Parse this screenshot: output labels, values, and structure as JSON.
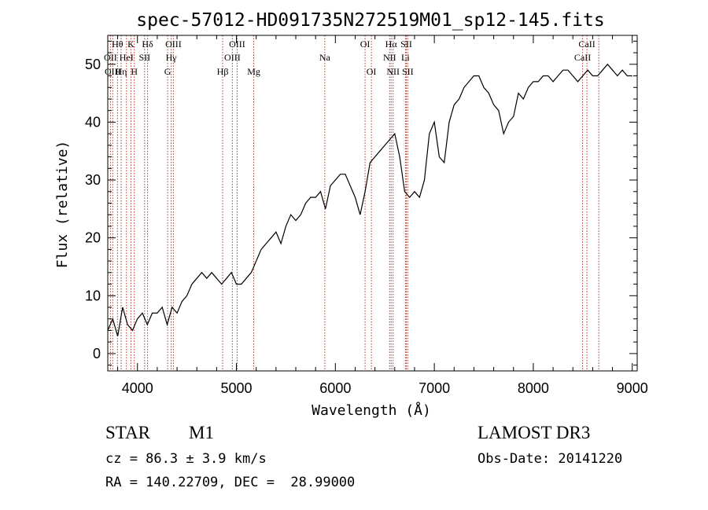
{
  "chart_data": {
    "type": "line",
    "title": "spec-57012-HD091735N272519M01_sp12-145.fits",
    "xlabel": "Wavelength (Å)",
    "ylabel": "Flux (relative)",
    "xlim": [
      3700,
      9050
    ],
    "ylim": [
      -3,
      55
    ],
    "xticks": [
      4000,
      5000,
      6000,
      7000,
      8000,
      9000
    ],
    "xtick_labels": [
      "4000",
      "5000",
      "6000",
      "7000",
      "8000",
      "9000"
    ],
    "yticks": [
      0,
      10,
      20,
      30,
      40,
      50
    ],
    "ytick_labels": [
      "0",
      "10",
      "20",
      "30",
      "40",
      "50"
    ],
    "series": [
      {
        "name": "flux",
        "color": "#000000",
        "x": [
          3700,
          3750,
          3800,
          3850,
          3900,
          3950,
          4000,
          4050,
          4100,
          4150,
          4200,
          4250,
          4300,
          4350,
          4400,
          4450,
          4500,
          4550,
          4600,
          4650,
          4700,
          4750,
          4800,
          4850,
          4900,
          4950,
          5000,
          5050,
          5100,
          5150,
          5200,
          5250,
          5300,
          5350,
          5400,
          5450,
          5500,
          5550,
          5600,
          5650,
          5700,
          5750,
          5800,
          5850,
          5900,
          5950,
          6000,
          6050,
          6100,
          6150,
          6200,
          6250,
          6300,
          6350,
          6400,
          6450,
          6500,
          6550,
          6600,
          6650,
          6700,
          6750,
          6800,
          6850,
          6900,
          6950,
          7000,
          7050,
          7100,
          7150,
          7200,
          7250,
          7300,
          7350,
          7400,
          7450,
          7500,
          7550,
          7600,
          7650,
          7700,
          7750,
          7800,
          7850,
          7900,
          7950,
          8000,
          8050,
          8100,
          8150,
          8200,
          8250,
          8300,
          8350,
          8400,
          8450,
          8500,
          8550,
          8600,
          8650,
          8700,
          8750,
          8800,
          8850,
          8900,
          8950,
          9000
        ],
        "y": [
          4,
          6,
          3,
          8,
          5,
          4,
          6,
          7,
          5,
          7,
          7,
          8,
          5,
          8,
          7,
          9,
          10,
          12,
          13,
          14,
          13,
          14,
          13,
          12,
          13,
          14,
          12,
          12,
          13,
          14,
          16,
          18,
          19,
          20,
          21,
          19,
          22,
          24,
          23,
          24,
          26,
          27,
          27,
          28,
          25,
          29,
          30,
          31,
          31,
          29,
          27,
          24,
          28,
          33,
          34,
          35,
          36,
          37,
          38,
          34,
          28,
          27,
          28,
          27,
          30,
          38,
          40,
          34,
          33,
          40,
          43,
          44,
          46,
          47,
          48,
          48,
          46,
          45,
          43,
          42,
          38,
          40,
          41,
          45,
          44,
          46,
          47,
          47,
          48,
          48,
          47,
          48,
          49,
          49,
          48,
          47,
          48,
          49,
          48,
          48,
          49,
          50,
          49,
          48,
          49,
          48,
          48
        ]
      }
    ],
    "emission_lines": [
      {
        "label": "Hθ",
        "wavelength": 3798
      },
      {
        "label": "K",
        "wavelength": 3934
      },
      {
        "label": "Hδ",
        "wavelength": 4102
      },
      {
        "label": "OIII",
        "wavelength": 4363
      },
      {
        "label": "OIII",
        "wavelength": 5007
      },
      {
        "label": "OI",
        "wavelength": 6300
      },
      {
        "label": "Hα",
        "wavelength": 6563
      },
      {
        "label": "SII",
        "wavelength": 6717
      },
      {
        "label": "CaII",
        "wavelength": 8542
      },
      {
        "label": "OII",
        "wavelength": 3727
      },
      {
        "label": "HeI",
        "wavelength": 3889
      },
      {
        "label": "SII",
        "wavelength": 4072
      },
      {
        "label": "Hγ",
        "wavelength": 4341
      },
      {
        "label": "OIII",
        "wavelength": 4959
      },
      {
        "label": "Na",
        "wavelength": 5893
      },
      {
        "label": "NII",
        "wavelength": 6548
      },
      {
        "label": "Li",
        "wavelength": 6708
      },
      {
        "label": "CaII",
        "wavelength": 8498
      },
      {
        "label": "OIII",
        "wavelength": 3750
      },
      {
        "label": "Hη",
        "wavelength": 3835
      },
      {
        "label": "H",
        "wavelength": 3968
      },
      {
        "label": "G",
        "wavelength": 4305
      },
      {
        "label": "Hβ",
        "wavelength": 4861
      },
      {
        "label": "Mg",
        "wavelength": 5175
      },
      {
        "label": "OI",
        "wavelength": 6364
      },
      {
        "label": "NII",
        "wavelength": 6583
      },
      {
        "label": "SII",
        "wavelength": 6731
      },
      {
        "label": "CaII",
        "wavelength": 8662
      }
    ]
  },
  "info": {
    "object_class": "STAR",
    "subclass": "M1",
    "survey": "LAMOST DR3",
    "cz": "cz = 86.3 ± 3.9 km/s",
    "obs_date": "Obs-Date: 20141220",
    "coords": "RA = 140.22709, DEC =  28.99000"
  }
}
